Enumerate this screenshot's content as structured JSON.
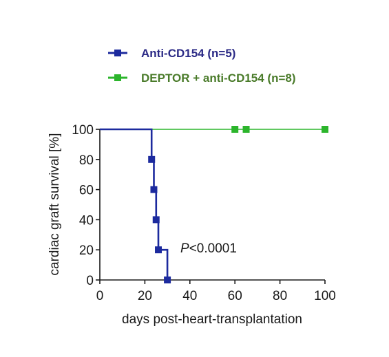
{
  "chart_data": {
    "type": "line",
    "title": "",
    "xlabel": "days post-heart-transplantation",
    "ylabel": "cardiac graft survival [%]",
    "xlim": [
      0,
      100
    ],
    "ylim": [
      0,
      100
    ],
    "x_ticks": [
      "0",
      "20",
      "40",
      "60",
      "80",
      "100"
    ],
    "y_ticks": [
      "0",
      "20",
      "40",
      "60",
      "80",
      "100"
    ],
    "step": true,
    "grid": false,
    "legend_position": "top",
    "annotation": {
      "italic": "P",
      "rest": "<0.0001"
    },
    "series": [
      {
        "name": "Anti-CD154 (n=5)",
        "color": "#1c2a9e",
        "legend_color": "#2b2a86",
        "steps": [
          [
            0,
            100
          ],
          [
            23,
            100
          ],
          [
            23,
            80
          ],
          [
            24,
            80
          ],
          [
            24,
            60
          ],
          [
            25,
            60
          ],
          [
            25,
            40
          ],
          [
            26,
            40
          ],
          [
            26,
            20
          ],
          [
            30,
            20
          ],
          [
            30,
            0
          ]
        ],
        "markers": [
          [
            23,
            80
          ],
          [
            24,
            60
          ],
          [
            25,
            40
          ],
          [
            26,
            20
          ],
          [
            30,
            0
          ]
        ]
      },
      {
        "name": "DEPTOR + anti-CD154 (n=8)",
        "color": "#2cb52c",
        "legend_color": "#4a7b2a",
        "steps": [
          [
            0,
            100
          ],
          [
            100,
            100
          ]
        ],
        "markers": [
          [
            60,
            100
          ],
          [
            65,
            100
          ],
          [
            100,
            100
          ]
        ]
      }
    ]
  }
}
